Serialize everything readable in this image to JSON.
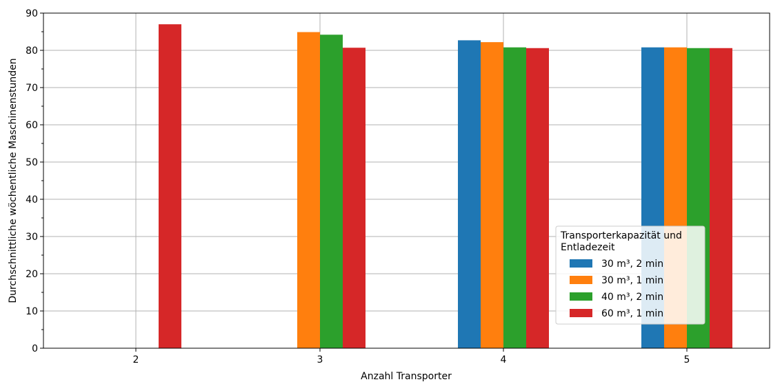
{
  "chart_data": {
    "type": "bar",
    "title": "",
    "xlabel": "Anzahl Transporter",
    "ylabel": "Durchschnittliche wöchentliche Maschinenstunden",
    "categories": [
      "2",
      "3",
      "4",
      "5"
    ],
    "ylim": [
      0,
      90
    ],
    "yticks": [
      0,
      10,
      20,
      30,
      40,
      50,
      60,
      70,
      80,
      90
    ],
    "grid": true,
    "legend": {
      "title": [
        "Transporterkapazität und",
        "Entladezeit"
      ],
      "placement": "lower-right"
    },
    "series": [
      {
        "name": "30 m³, 2 min",
        "color": "#1f77b4",
        "values": [
          null,
          null,
          82.7,
          80.8
        ]
      },
      {
        "name": "30 m³, 1 min",
        "color": "#ff7f0e",
        "values": [
          null,
          84.9,
          82.2,
          80.8
        ]
      },
      {
        "name": "40 m³, 2 min",
        "color": "#2ca02c",
        "values": [
          null,
          84.2,
          80.8,
          80.6
        ]
      },
      {
        "name": "60 m³, 1 min",
        "color": "#d62728",
        "values": [
          87.0,
          80.7,
          80.6,
          80.6
        ]
      }
    ]
  }
}
